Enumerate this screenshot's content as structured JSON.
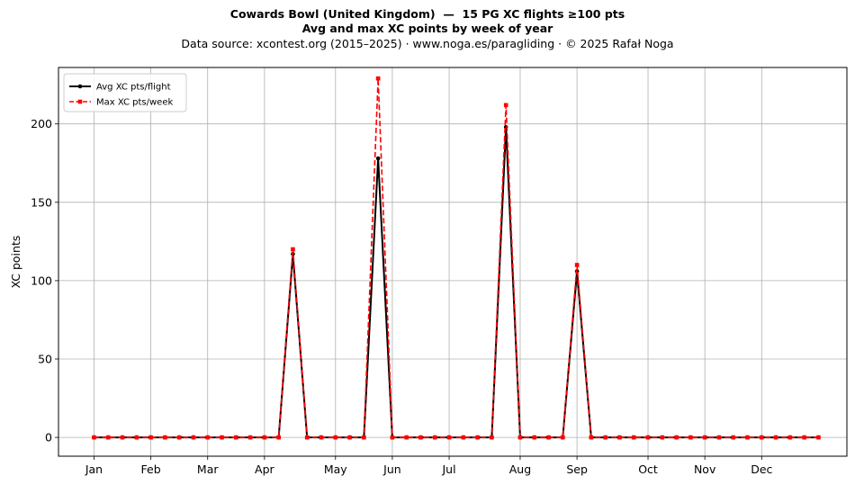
{
  "header": {
    "title": "Cowards Bowl (United Kingdom)  —  15 PG XC flights ≥100 pts",
    "subtitle": "Avg and max XC points by week of year",
    "source": "Data source: xcontest.org (2015–2025)  ·  www.noga.es/paragliding  ·  © 2025 Rafał Noga"
  },
  "chart_data": {
    "type": "line",
    "title": "Cowards Bowl (United Kingdom)  —  15 PG XC flights ≥100 pts",
    "subtitle": "Avg and max XC points by week of year",
    "xlabel": "",
    "ylabel": "XC points",
    "ylim": [
      -12,
      236
    ],
    "yticks": [
      0,
      50,
      100,
      150,
      200
    ],
    "x_unit": "week of year",
    "xlim": [
      -1.5,
      54
    ],
    "xticks": [
      {
        "label": "Jan",
        "week": 1
      },
      {
        "label": "Feb",
        "week": 5
      },
      {
        "label": "Mar",
        "week": 9
      },
      {
        "label": "Apr",
        "week": 13
      },
      {
        "label": "May",
        "week": 18
      },
      {
        "label": "Jun",
        "week": 22
      },
      {
        "label": "Jul",
        "week": 26
      },
      {
        "label": "Aug",
        "week": 31
      },
      {
        "label": "Sep",
        "week": 35
      },
      {
        "label": "Oct",
        "week": 40
      },
      {
        "label": "Nov",
        "week": 44
      },
      {
        "label": "Dec",
        "week": 48
      }
    ],
    "grid": true,
    "legend_position": "top-left",
    "x": [
      1,
      2,
      3,
      4,
      5,
      6,
      7,
      8,
      9,
      10,
      11,
      12,
      13,
      14,
      15,
      16,
      17,
      18,
      19,
      20,
      21,
      22,
      23,
      24,
      25,
      26,
      27,
      28,
      29,
      30,
      31,
      32,
      33,
      34,
      35,
      36,
      37,
      38,
      39,
      40,
      41,
      42,
      43,
      44,
      45,
      46,
      47,
      48,
      49,
      50,
      51,
      52
    ],
    "series": [
      {
        "name": "Avg XC pts/flight",
        "color": "#000000",
        "style": "solid",
        "marker": "circle",
        "values": [
          0,
          0,
          0,
          0,
          0,
          0,
          0,
          0,
          0,
          0,
          0,
          0,
          0,
          0,
          117,
          0,
          0,
          0,
          0,
          0,
          178,
          0,
          0,
          0,
          0,
          0,
          0,
          0,
          0,
          198,
          0,
          0,
          0,
          0,
          106,
          0,
          0,
          0,
          0,
          0,
          0,
          0,
          0,
          0,
          0,
          0,
          0,
          0,
          0,
          0,
          0,
          0
        ]
      },
      {
        "name": "Max XC pts/week",
        "color": "#ff0000",
        "style": "dashed",
        "marker": "square",
        "values": [
          0,
          0,
          0,
          0,
          0,
          0,
          0,
          0,
          0,
          0,
          0,
          0,
          0,
          0,
          120,
          0,
          0,
          0,
          0,
          0,
          229,
          0,
          0,
          0,
          0,
          0,
          0,
          0,
          0,
          212,
          0,
          0,
          0,
          0,
          110,
          0,
          0,
          0,
          0,
          0,
          0,
          0,
          0,
          0,
          0,
          0,
          0,
          0,
          0,
          0,
          0,
          0
        ]
      }
    ]
  }
}
